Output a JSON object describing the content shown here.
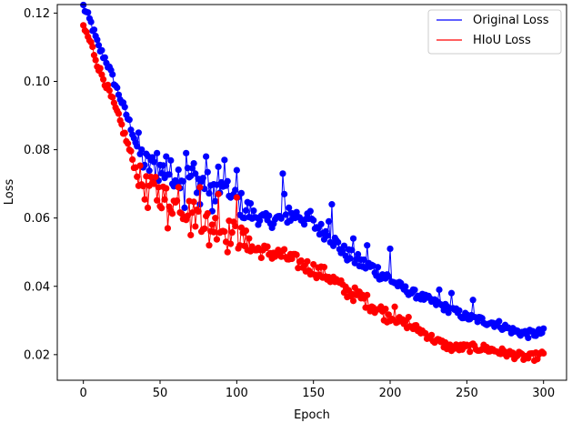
{
  "chart_data": {
    "type": "line",
    "xlabel": "Epoch",
    "ylabel": "Loss",
    "xlim": [
      -17,
      315
    ],
    "ylim": [
      0.0125,
      0.1225
    ],
    "xticks": [
      0,
      50,
      100,
      150,
      200,
      250,
      300
    ],
    "yticks": [
      0.02,
      0.04,
      0.06,
      0.08,
      0.1,
      0.12
    ],
    "ytick_labels": [
      "0.02",
      "0.04",
      "0.06",
      "0.08",
      "0.10",
      "0.12"
    ],
    "legend_position": "top-right",
    "grid": false,
    "markers": true,
    "series": [
      {
        "name": "Original Loss",
        "color": "#0000ff",
        "anchors": [
          [
            0,
            0.122
          ],
          [
            5,
            0.117
          ],
          [
            10,
            0.11
          ],
          [
            15,
            0.106
          ],
          [
            20,
            0.1
          ],
          [
            25,
            0.094
          ],
          [
            30,
            0.088
          ],
          [
            35,
            0.081
          ],
          [
            40,
            0.076
          ],
          [
            50,
            0.074
          ],
          [
            60,
            0.073
          ],
          [
            70,
            0.072
          ],
          [
            80,
            0.07
          ],
          [
            90,
            0.068
          ],
          [
            100,
            0.065
          ],
          [
            110,
            0.061
          ],
          [
            120,
            0.059
          ],
          [
            130,
            0.06
          ],
          [
            140,
            0.061
          ],
          [
            150,
            0.058
          ],
          [
            160,
            0.055
          ],
          [
            170,
            0.05
          ],
          [
            180,
            0.047
          ],
          [
            190,
            0.045
          ],
          [
            200,
            0.042
          ],
          [
            210,
            0.039
          ],
          [
            220,
            0.037
          ],
          [
            230,
            0.035
          ],
          [
            240,
            0.033
          ],
          [
            250,
            0.031
          ],
          [
            260,
            0.03
          ],
          [
            270,
            0.029
          ],
          [
            280,
            0.027
          ],
          [
            290,
            0.026
          ],
          [
            300,
            0.0265
          ]
        ],
        "spikes": [
          [
            36,
            0.085
          ],
          [
            44,
            0.077
          ],
          [
            48,
            0.079
          ],
          [
            54,
            0.078
          ],
          [
            58,
            0.07
          ],
          [
            66,
            0.063
          ],
          [
            67,
            0.079
          ],
          [
            72,
            0.076
          ],
          [
            76,
            0.064
          ],
          [
            80,
            0.078
          ],
          [
            84,
            0.062
          ],
          [
            88,
            0.075
          ],
          [
            92,
            0.077
          ],
          [
            96,
            0.066
          ],
          [
            100,
            0.074
          ],
          [
            105,
            0.06
          ],
          [
            130,
            0.073
          ],
          [
            131,
            0.067
          ],
          [
            134,
            0.063
          ],
          [
            148,
            0.062
          ],
          [
            160,
            0.059
          ],
          [
            162,
            0.064
          ],
          [
            176,
            0.054
          ],
          [
            185,
            0.052
          ],
          [
            200,
            0.051
          ],
          [
            232,
            0.039
          ],
          [
            240,
            0.038
          ],
          [
            254,
            0.036
          ]
        ]
      },
      {
        "name": "HIoU Loss",
        "color": "#ff0000",
        "anchors": [
          [
            0,
            0.116
          ],
          [
            5,
            0.111
          ],
          [
            10,
            0.104
          ],
          [
            15,
            0.099
          ],
          [
            20,
            0.093
          ],
          [
            25,
            0.087
          ],
          [
            30,
            0.08
          ],
          [
            35,
            0.073
          ],
          [
            40,
            0.069
          ],
          [
            50,
            0.067
          ],
          [
            60,
            0.064
          ],
          [
            70,
            0.062
          ],
          [
            80,
            0.059
          ],
          [
            90,
            0.057
          ],
          [
            100,
            0.055
          ],
          [
            110,
            0.051
          ],
          [
            120,
            0.05
          ],
          [
            130,
            0.049
          ],
          [
            140,
            0.047
          ],
          [
            150,
            0.045
          ],
          [
            160,
            0.043
          ],
          [
            170,
            0.039
          ],
          [
            180,
            0.037
          ],
          [
            190,
            0.034
          ],
          [
            200,
            0.031
          ],
          [
            210,
            0.029
          ],
          [
            220,
            0.027
          ],
          [
            230,
            0.024
          ],
          [
            240,
            0.022
          ],
          [
            250,
            0.022
          ],
          [
            260,
            0.022
          ],
          [
            270,
            0.021
          ],
          [
            280,
            0.02
          ],
          [
            290,
            0.019
          ],
          [
            300,
            0.02
          ]
        ],
        "spikes": [
          [
            42,
            0.063
          ],
          [
            47,
            0.072
          ],
          [
            55,
            0.057
          ],
          [
            62,
            0.069
          ],
          [
            70,
            0.055
          ],
          [
            76,
            0.069
          ],
          [
            82,
            0.052
          ],
          [
            88,
            0.067
          ],
          [
            94,
            0.05
          ],
          [
            100,
            0.066
          ],
          [
            108,
            0.054
          ],
          [
            203,
            0.034
          ],
          [
            212,
            0.031
          ]
        ]
      }
    ]
  }
}
